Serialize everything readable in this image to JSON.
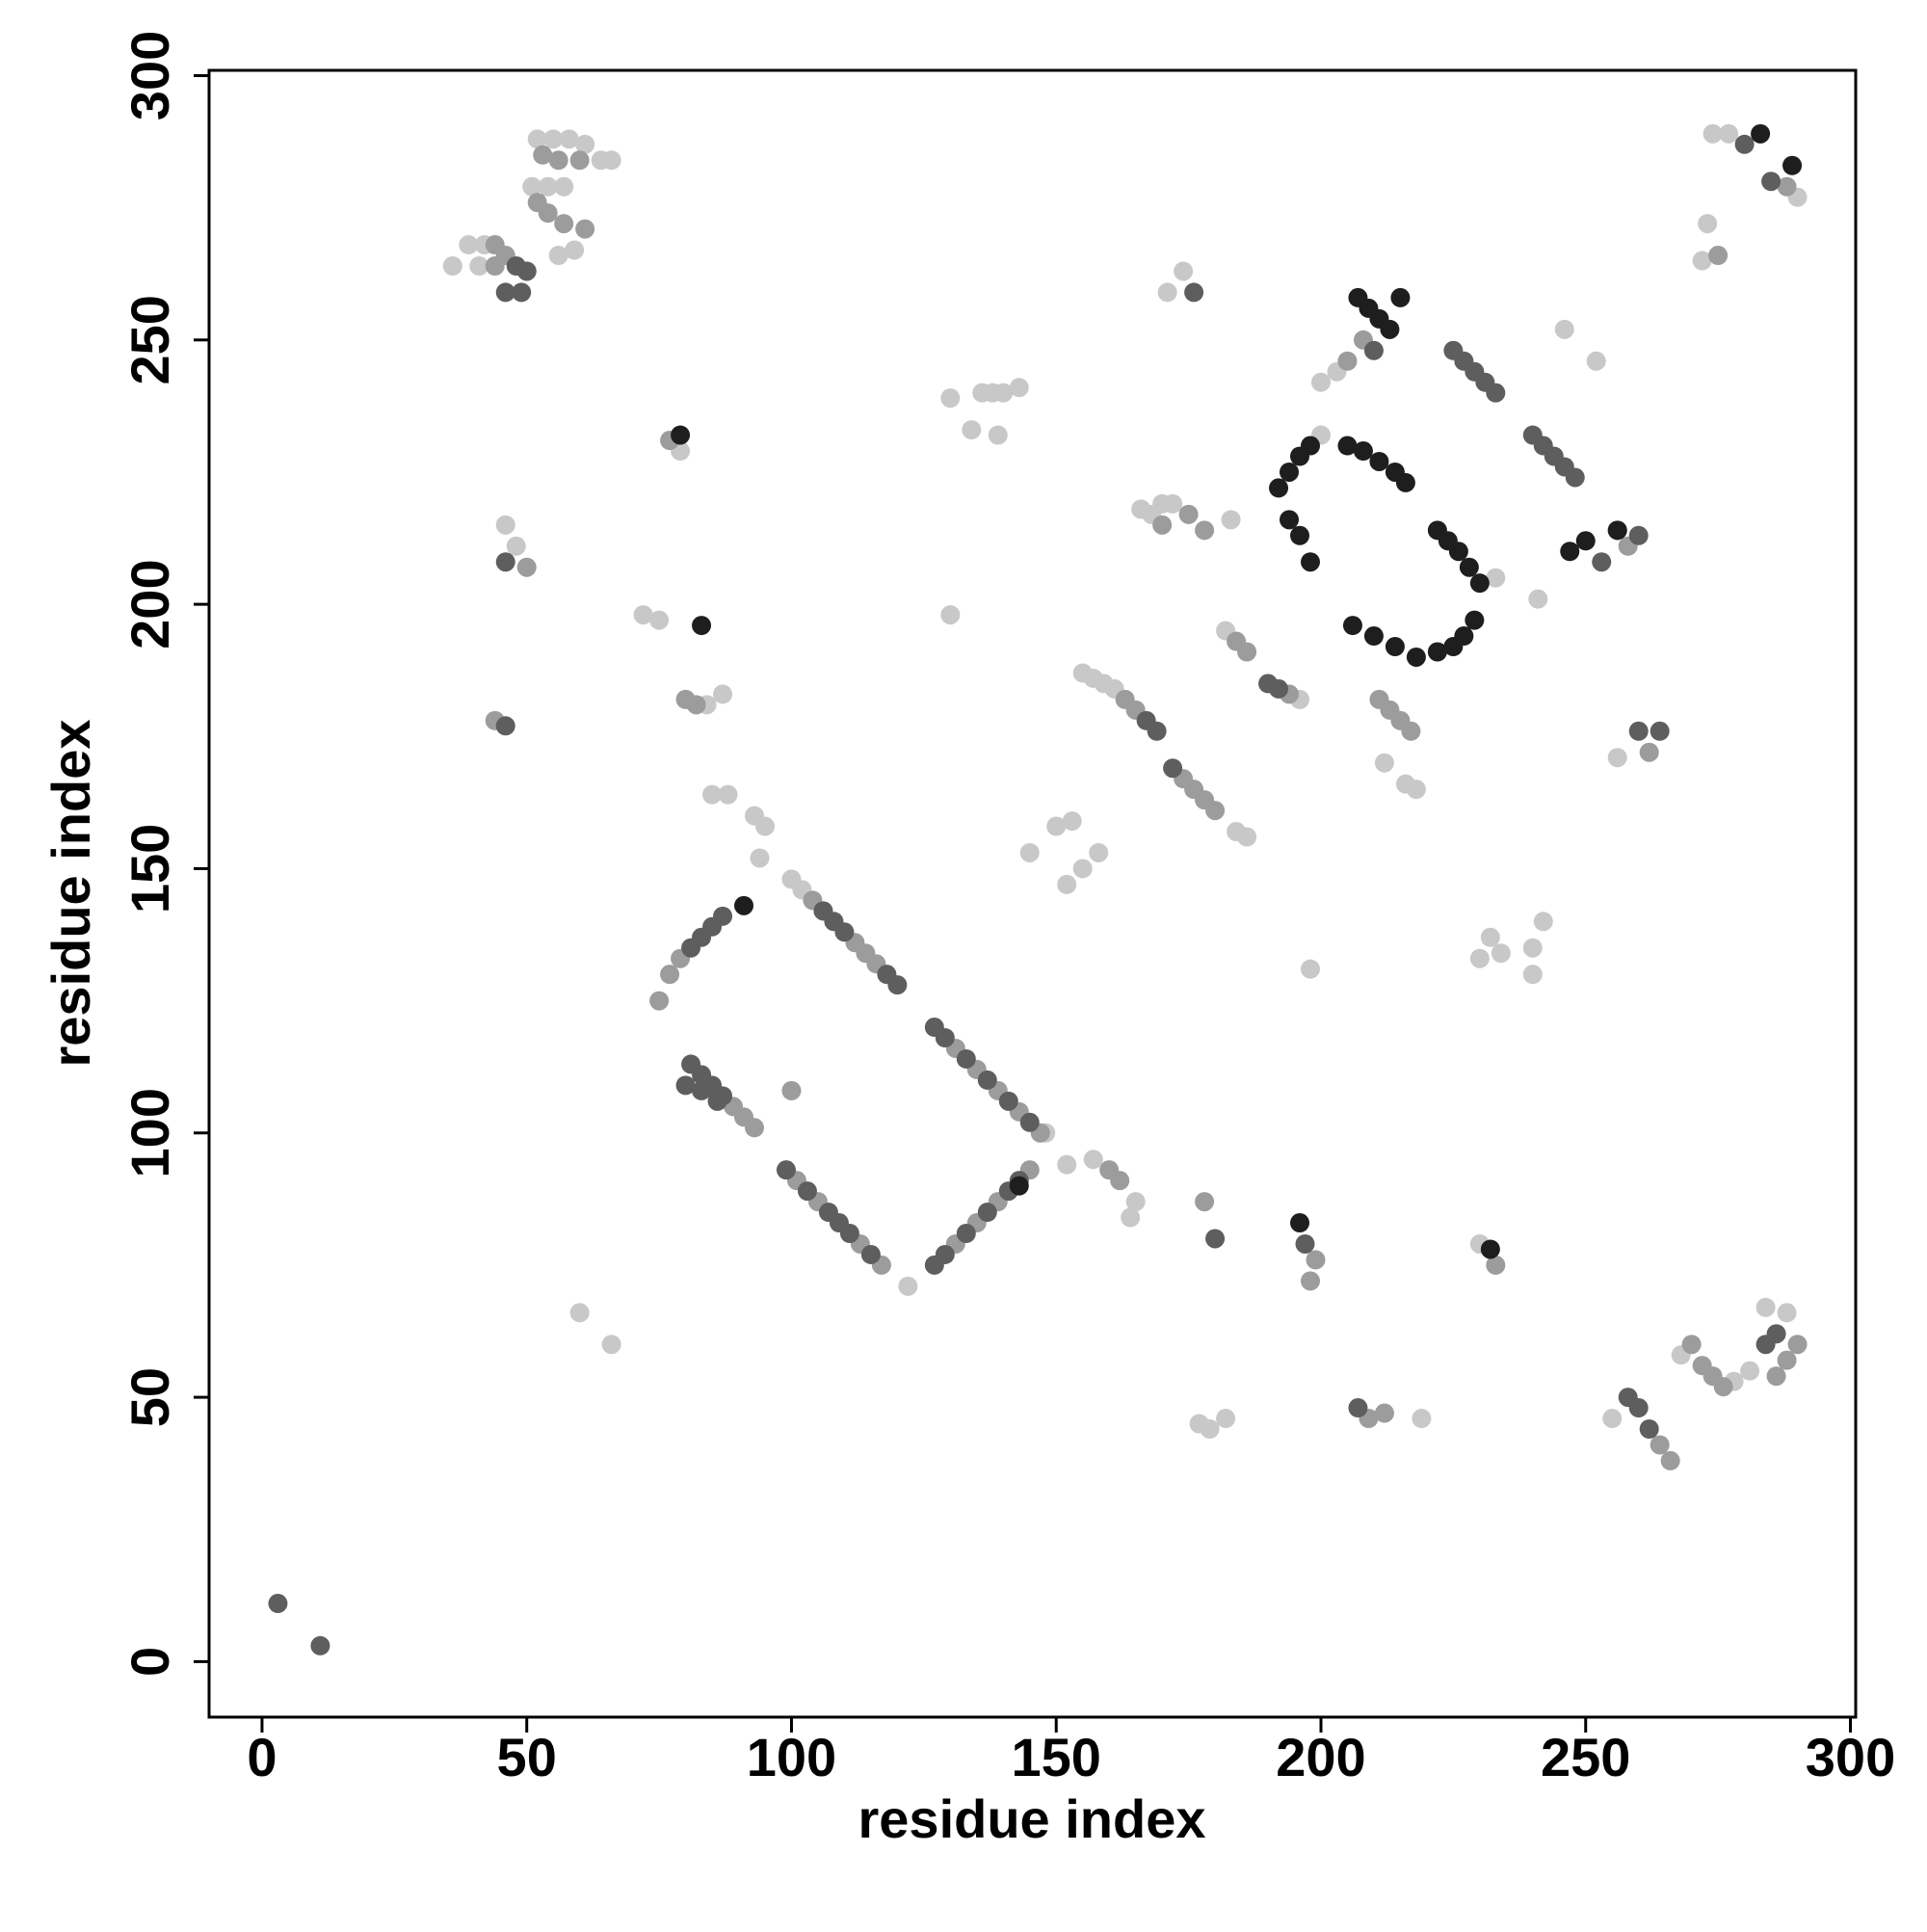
{
  "chart_data": {
    "type": "scatter",
    "xlabel": "residue index",
    "ylabel": "residue index",
    "xlim": [
      -10,
      301
    ],
    "ylim": [
      -10.5,
      301
    ],
    "xticks": [
      0,
      50,
      100,
      150,
      200,
      250,
      300
    ],
    "yticks": [
      0,
      50,
      100,
      150,
      200,
      250,
      300
    ],
    "series": [
      {
        "color": "#c8c8c8",
        "x": [
          52,
          55,
          58,
          61,
          51,
          54,
          57,
          56,
          59,
          36,
          39,
          42,
          41,
          64,
          66,
          46,
          48,
          79,
          72,
          75,
          87,
          84,
          60,
          66,
          85,
          88,
          93,
          95,
          94,
          100,
          102,
          130,
          136,
          138,
          140,
          143,
          134,
          139,
          130,
          145,
          150,
          153,
          152,
          155,
          158,
          155,
          157,
          159,
          161,
          184,
          186,
          166,
          168,
          170,
          172,
          183,
          171,
          174,
          182,
          196,
          177,
          179,
          182,
          198,
          219,
          200,
          198,
          203,
          200,
          216,
          218,
          212,
          232,
          234,
          240,
          242,
          230,
          240,
          230,
          246,
          252,
          241,
          233,
          256,
          273,
          272,
          274,
          277,
          290,
          255,
          268,
          278,
          281,
          284,
          288,
          122,
          152,
          157,
          165,
          164,
          148
        ],
        "values": [
          288,
          288,
          288,
          287,
          279,
          279,
          279,
          266,
          267,
          264,
          268,
          268,
          264,
          284,
          284,
          215,
          211,
          229,
          198,
          197,
          183,
          181,
          66,
          60,
          164,
          164,
          160,
          158,
          152,
          148,
          146,
          239,
          240,
          240,
          240,
          241,
          233,
          232,
          198,
          153,
          158,
          159,
          147,
          150,
          153,
          187,
          186,
          185,
          184,
          157,
          156,
          218,
          217,
          219,
          219,
          216,
          259,
          263,
          195,
          182,
          45,
          44,
          46,
          131,
          46,
          232,
          230,
          244,
          242,
          166,
          165,
          170,
          137,
          134,
          135,
          140,
          133,
          130,
          79,
          252,
          246,
          201,
          205,
          171,
          272,
          265,
          289,
          289,
          277,
          46,
          58,
          53,
          55,
          67,
          66,
          71,
          94,
          95,
          87,
          84,
          100
        ]
      },
      {
        "color": "#9c9c9c",
        "x": [
          53,
          56,
          60,
          52,
          54,
          57,
          61,
          44,
          46,
          44,
          50,
          44,
          50,
          77,
          80,
          82,
          89,
          91,
          93,
          75,
          77,
          79,
          104,
          106,
          112,
          114,
          116,
          101,
          105,
          113,
          117,
          100,
          131,
          135,
          139,
          143,
          147,
          131,
          135,
          139,
          145,
          160,
          162,
          174,
          176,
          178,
          180,
          163,
          165,
          170,
          175,
          178,
          184,
          186,
          194,
          178,
          199,
          198,
          209,
          212,
          205,
          208,
          211,
          213,
          215,
          217,
          233,
          258,
          262,
          264,
          266,
          270,
          272,
          274,
          276,
          286,
          288,
          290,
          275,
          288
        ],
        "values": [
          285,
          284,
          284,
          276,
          274,
          272,
          271,
          268,
          266,
          264,
          263,
          178,
          207,
          231,
          182,
          181,
          105,
          103,
          101,
          125,
          130,
          133,
          144,
          142,
          136,
          134,
          132,
          91,
          87,
          79,
          75,
          108,
          116,
          112,
          108,
          104,
          100,
          79,
          83,
          87,
          93,
          93,
          91,
          167,
          165,
          163,
          161,
          182,
          180,
          215,
          217,
          214,
          193,
          191,
          183,
          87,
          76,
          72,
          46,
          47,
          246,
          250,
          182,
          180,
          178,
          176,
          75,
          211,
          172,
          41,
          38,
          60,
          56,
          54,
          52,
          54,
          57,
          60,
          266,
          279
        ]
      },
      {
        "color": "#5e5e5e",
        "x": [
          3,
          11,
          50,
          46,
          49,
          48,
          46,
          46,
          81,
          83,
          85,
          87,
          80,
          83,
          86,
          81,
          83,
          85,
          87,
          99,
          103,
          107,
          109,
          111,
          115,
          106,
          108,
          110,
          118,
          120,
          127,
          129,
          133,
          137,
          141,
          145,
          127,
          129,
          133,
          137,
          141,
          143,
          167,
          169,
          172,
          176,
          180,
          190,
          192,
          207,
          210,
          225,
          227,
          229,
          231,
          233,
          240,
          242,
          244,
          246,
          248,
          253,
          256,
          260,
          260,
          264,
          258,
          260,
          262,
          284,
          286,
          280,
          285,
          197
        ],
        "values": [
          11,
          3,
          263,
          259,
          259,
          264,
          208,
          177,
          113,
          111,
          109,
          107,
          109,
          108,
          106,
          135,
          137,
          139,
          141,
          93,
          89,
          85,
          83,
          81,
          77,
          142,
          140,
          138,
          130,
          128,
          120,
          118,
          114,
          110,
          106,
          102,
          75,
          77,
          81,
          85,
          89,
          91,
          178,
          176,
          169,
          259,
          80,
          185,
          184,
          48,
          248,
          248,
          246,
          244,
          242,
          240,
          232,
          230,
          228,
          226,
          224,
          208,
          214,
          213,
          176,
          176,
          50,
          48,
          44,
          60,
          62,
          287,
          280,
          79
        ]
      },
      {
        "color": "#1e1e1e",
        "x": [
          79,
          83,
          91,
          143,
          192,
          194,
          196,
          198,
          196,
          194,
          198,
          205,
          208,
          211,
          214,
          216,
          222,
          224,
          226,
          228,
          230,
          229,
          227,
          225,
          222,
          218,
          214,
          210,
          206,
          207,
          209,
          211,
          213,
          215,
          247,
          250,
          256,
          196,
          232,
          283,
          289
        ],
        "values": [
          232,
          196,
          143,
          90,
          222,
          225,
          228,
          230,
          213,
          216,
          208,
          230,
          229,
          227,
          225,
          223,
          214,
          212,
          210,
          207,
          204,
          197,
          194,
          192,
          191,
          190,
          192,
          194,
          196,
          258,
          256,
          254,
          252,
          258,
          210,
          212,
          214,
          83,
          78,
          289,
          283
        ]
      }
    ]
  }
}
